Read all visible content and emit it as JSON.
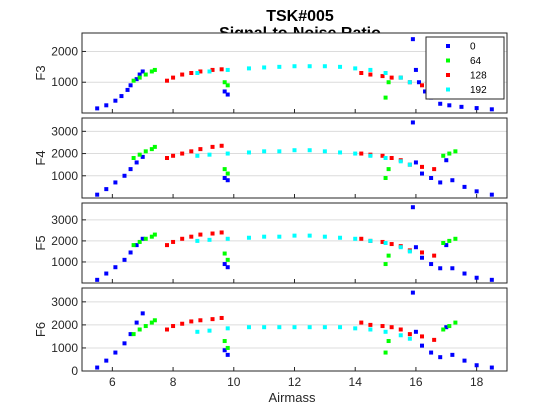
{
  "chart_data": {
    "type": "scatter",
    "title": "TSK#005",
    "subtitle": "Signal-to-Noise Ratio",
    "xlabel": "Airmass",
    "xlim": [
      5,
      19
    ],
    "xticks": [
      6,
      8,
      10,
      12,
      14,
      16,
      18
    ],
    "grid": "y",
    "legend": {
      "placement": "top-right",
      "entries": [
        {
          "label": "0",
          "color": "#0000ff"
        },
        {
          "label": "64",
          "color": "#00ff00"
        },
        {
          "label": "128",
          "color": "#ff0000"
        },
        {
          "label": "192",
          "color": "#00ffff"
        }
      ]
    },
    "panels": [
      {
        "ylabel": "F3",
        "ylim": [
          0,
          2600
        ],
        "yticks": [
          1000,
          2000
        ],
        "tick_labels": [
          "1000",
          "2000"
        ]
      },
      {
        "ylabel": "F4",
        "ylim": [
          0,
          3600
        ],
        "yticks": [
          1000,
          2000,
          3000
        ],
        "tick_labels": [
          "1000",
          "2000",
          "3000"
        ]
      },
      {
        "ylabel": "F5",
        "ylim": [
          0,
          3800
        ],
        "yticks": [
          1000,
          2000,
          3000
        ],
        "tick_labels": [
          "1000",
          "2000",
          "3000"
        ]
      },
      {
        "ylabel": "F6",
        "ylim": [
          0,
          3600
        ],
        "yticks": [
          0,
          1000,
          2000,
          3000
        ],
        "tick_labels": [
          "0",
          "1000",
          "2000",
          "3000"
        ]
      }
    ],
    "series": [
      {
        "name": "0",
        "color": "#0000ff",
        "F3": [
          [
            5.5,
            150
          ],
          [
            5.8,
            250
          ],
          [
            6.1,
            400
          ],
          [
            6.3,
            550
          ],
          [
            6.5,
            750
          ],
          [
            6.6,
            900
          ],
          [
            6.8,
            1100
          ],
          [
            6.9,
            1250
          ],
          [
            7.0,
            1350
          ],
          [
            9.7,
            700
          ],
          [
            9.8,
            600
          ],
          [
            15.9,
            2400
          ],
          [
            16.0,
            1400
          ],
          [
            16.1,
            1000
          ],
          [
            16.3,
            700
          ],
          [
            16.5,
            500
          ],
          [
            16.8,
            300
          ],
          [
            17.1,
            250
          ],
          [
            17.5,
            200
          ],
          [
            18.0,
            160
          ],
          [
            18.5,
            120
          ]
        ],
        "F4": [
          [
            5.5,
            150
          ],
          [
            5.8,
            400
          ],
          [
            6.1,
            700
          ],
          [
            6.4,
            1000
          ],
          [
            6.6,
            1300
          ],
          [
            6.8,
            1600
          ],
          [
            7.0,
            1850
          ],
          [
            9.7,
            900
          ],
          [
            9.8,
            800
          ],
          [
            15.9,
            3400
          ],
          [
            16.0,
            1600
          ],
          [
            16.2,
            1100
          ],
          [
            16.5,
            900
          ],
          [
            16.8,
            700
          ],
          [
            17.0,
            1700
          ],
          [
            17.2,
            800
          ],
          [
            17.6,
            500
          ],
          [
            18.0,
            300
          ],
          [
            18.5,
            150
          ]
        ],
        "F5": [
          [
            5.5,
            150
          ],
          [
            5.8,
            450
          ],
          [
            6.1,
            750
          ],
          [
            6.4,
            1100
          ],
          [
            6.6,
            1450
          ],
          [
            6.8,
            1800
          ],
          [
            7.0,
            2100
          ],
          [
            9.7,
            900
          ],
          [
            9.8,
            750
          ],
          [
            15.9,
            3600
          ],
          [
            16.0,
            1700
          ],
          [
            16.2,
            1200
          ],
          [
            16.5,
            900
          ],
          [
            16.8,
            700
          ],
          [
            17.0,
            1800
          ],
          [
            17.2,
            700
          ],
          [
            17.6,
            450
          ],
          [
            18.0,
            250
          ],
          [
            18.5,
            150
          ]
        ],
        "F6": [
          [
            5.5,
            150
          ],
          [
            5.8,
            450
          ],
          [
            6.1,
            800
          ],
          [
            6.4,
            1200
          ],
          [
            6.6,
            1600
          ],
          [
            6.8,
            2100
          ],
          [
            7.0,
            2500
          ],
          [
            9.7,
            900
          ],
          [
            9.8,
            700
          ],
          [
            15.9,
            3400
          ],
          [
            16.0,
            1700
          ],
          [
            16.2,
            1100
          ],
          [
            16.5,
            800
          ],
          [
            16.8,
            600
          ],
          [
            17.0,
            1900
          ],
          [
            17.2,
            700
          ],
          [
            17.6,
            450
          ],
          [
            18.0,
            250
          ],
          [
            18.5,
            150
          ]
        ]
      },
      {
        "name": "64",
        "color": "#00ff00",
        "F3": [
          [
            6.7,
            1050
          ],
          [
            6.9,
            1150
          ],
          [
            7.1,
            1250
          ],
          [
            7.3,
            1350
          ],
          [
            7.4,
            1400
          ],
          [
            9.7,
            1000
          ],
          [
            9.8,
            900
          ],
          [
            15.0,
            500
          ],
          [
            15.1,
            1000
          ],
          [
            16.9,
            1100
          ],
          [
            17.1,
            1150
          ],
          [
            17.3,
            1200
          ]
        ],
        "F4": [
          [
            6.7,
            1800
          ],
          [
            6.9,
            1950
          ],
          [
            7.1,
            2100
          ],
          [
            7.3,
            2200
          ],
          [
            7.4,
            2300
          ],
          [
            9.7,
            1300
          ],
          [
            9.8,
            1100
          ],
          [
            15.0,
            900
          ],
          [
            15.1,
            1300
          ],
          [
            16.9,
            1900
          ],
          [
            17.1,
            2000
          ],
          [
            17.3,
            2100
          ]
        ],
        "F5": [
          [
            6.7,
            1800
          ],
          [
            6.9,
            1950
          ],
          [
            7.1,
            2100
          ],
          [
            7.3,
            2200
          ],
          [
            7.4,
            2300
          ],
          [
            9.7,
            1400
          ],
          [
            9.8,
            1100
          ],
          [
            15.0,
            900
          ],
          [
            15.1,
            1300
          ],
          [
            16.9,
            1900
          ],
          [
            17.1,
            2000
          ],
          [
            17.3,
            2100
          ]
        ],
        "F6": [
          [
            6.7,
            1600
          ],
          [
            6.9,
            1800
          ],
          [
            7.1,
            1950
          ],
          [
            7.3,
            2100
          ],
          [
            7.4,
            2200
          ],
          [
            9.7,
            1300
          ],
          [
            9.8,
            1000
          ],
          [
            15.0,
            800
          ],
          [
            15.1,
            1300
          ],
          [
            16.9,
            1800
          ],
          [
            17.1,
            1950
          ],
          [
            17.3,
            2100
          ]
        ]
      },
      {
        "name": "128",
        "color": "#ff0000",
        "F3": [
          [
            7.8,
            1050
          ],
          [
            8.0,
            1150
          ],
          [
            8.3,
            1250
          ],
          [
            8.6,
            1300
          ],
          [
            8.9,
            1350
          ],
          [
            9.3,
            1400
          ],
          [
            9.6,
            1420
          ],
          [
            14.2,
            1300
          ],
          [
            14.5,
            1250
          ],
          [
            14.9,
            1200
          ],
          [
            15.2,
            1150
          ],
          [
            15.5,
            1150
          ],
          [
            15.8,
            1000
          ],
          [
            16.2,
            900
          ],
          [
            16.6,
            800
          ]
        ],
        "F4": [
          [
            7.8,
            1800
          ],
          [
            8.0,
            1900
          ],
          [
            8.3,
            2000
          ],
          [
            8.6,
            2100
          ],
          [
            8.9,
            2200
          ],
          [
            9.3,
            2300
          ],
          [
            9.6,
            2350
          ],
          [
            14.2,
            2000
          ],
          [
            14.5,
            1950
          ],
          [
            14.9,
            1900
          ],
          [
            15.2,
            1800
          ],
          [
            15.5,
            1700
          ],
          [
            15.8,
            1500
          ],
          [
            16.2,
            1400
          ],
          [
            16.6,
            1300
          ]
        ],
        "F5": [
          [
            7.8,
            1800
          ],
          [
            8.0,
            1950
          ],
          [
            8.3,
            2100
          ],
          [
            8.6,
            2200
          ],
          [
            8.9,
            2300
          ],
          [
            9.3,
            2350
          ],
          [
            9.6,
            2400
          ],
          [
            14.2,
            2100
          ],
          [
            14.5,
            2000
          ],
          [
            14.9,
            1950
          ],
          [
            15.2,
            1850
          ],
          [
            15.5,
            1750
          ],
          [
            15.8,
            1550
          ],
          [
            16.2,
            1450
          ],
          [
            16.6,
            1300
          ]
        ],
        "F6": [
          [
            7.8,
            1800
          ],
          [
            8.0,
            1950
          ],
          [
            8.3,
            2050
          ],
          [
            8.6,
            2150
          ],
          [
            8.9,
            2200
          ],
          [
            9.3,
            2250
          ],
          [
            9.6,
            2300
          ],
          [
            14.2,
            2100
          ],
          [
            14.5,
            2000
          ],
          [
            14.9,
            1950
          ],
          [
            15.2,
            1900
          ],
          [
            15.5,
            1800
          ],
          [
            15.8,
            1600
          ],
          [
            16.2,
            1500
          ],
          [
            16.6,
            1350
          ]
        ]
      },
      {
        "name": "192",
        "color": "#00ffff",
        "F3": [
          [
            8.8,
            1300
          ],
          [
            9.2,
            1350
          ],
          [
            9.8,
            1400
          ],
          [
            10.5,
            1450
          ],
          [
            11.0,
            1480
          ],
          [
            11.5,
            1500
          ],
          [
            12.0,
            1520
          ],
          [
            12.5,
            1520
          ],
          [
            13.0,
            1520
          ],
          [
            13.5,
            1500
          ],
          [
            14.0,
            1450
          ],
          [
            14.5,
            1400
          ],
          [
            15.0,
            1300
          ],
          [
            15.5,
            1150
          ],
          [
            15.8,
            1000
          ]
        ],
        "F4": [
          [
            8.8,
            1900
          ],
          [
            9.2,
            1950
          ],
          [
            9.8,
            2000
          ],
          [
            10.5,
            2050
          ],
          [
            11.0,
            2100
          ],
          [
            11.5,
            2100
          ],
          [
            12.0,
            2150
          ],
          [
            12.5,
            2150
          ],
          [
            13.0,
            2100
          ],
          [
            13.5,
            2050
          ],
          [
            14.0,
            2000
          ],
          [
            14.5,
            1900
          ],
          [
            15.0,
            1800
          ],
          [
            15.5,
            1650
          ],
          [
            15.8,
            1500
          ]
        ],
        "F5": [
          [
            8.8,
            2000
          ],
          [
            9.2,
            2050
          ],
          [
            9.8,
            2100
          ],
          [
            10.5,
            2150
          ],
          [
            11.0,
            2200
          ],
          [
            11.5,
            2200
          ],
          [
            12.0,
            2250
          ],
          [
            12.5,
            2250
          ],
          [
            13.0,
            2200
          ],
          [
            13.5,
            2150
          ],
          [
            14.0,
            2100
          ],
          [
            14.5,
            2000
          ],
          [
            15.0,
            1900
          ],
          [
            15.5,
            1700
          ],
          [
            15.8,
            1500
          ]
        ],
        "F6": [
          [
            8.8,
            1700
          ],
          [
            9.2,
            1750
          ],
          [
            9.8,
            1850
          ],
          [
            10.5,
            1900
          ],
          [
            11.0,
            1900
          ],
          [
            11.5,
            1900
          ],
          [
            12.0,
            1900
          ],
          [
            12.5,
            1900
          ],
          [
            13.0,
            1900
          ],
          [
            13.5,
            1900
          ],
          [
            14.0,
            1850
          ],
          [
            14.5,
            1800
          ],
          [
            15.0,
            1700
          ],
          [
            15.5,
            1550
          ],
          [
            15.8,
            1400
          ]
        ]
      }
    ]
  }
}
